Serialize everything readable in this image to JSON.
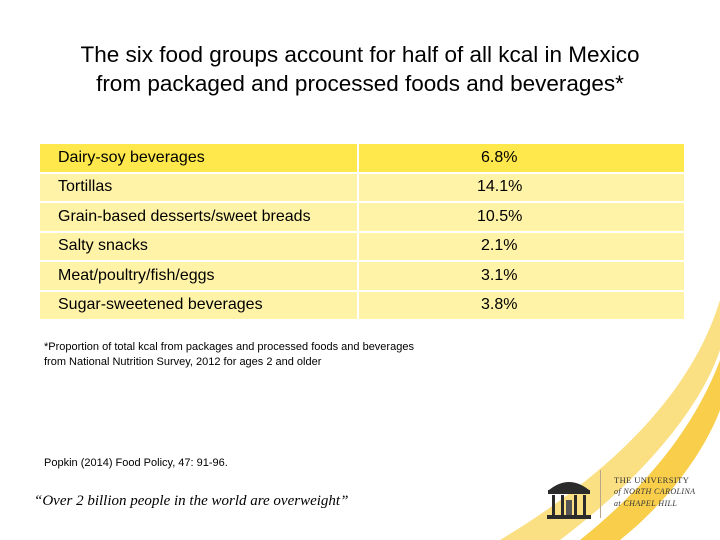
{
  "title": {
    "line1": "The six food groups account for half of all kcal in Mexico",
    "line2": "from packaged and processed foods and beverages*"
  },
  "rows": [
    {
      "name": "Dairy-soy beverages",
      "value": "6.8%"
    },
    {
      "name": "Tortillas",
      "value": "14.1%"
    },
    {
      "name": "Grain-based desserts/sweet breads",
      "value": "10.5%"
    },
    {
      "name": "Salty snacks",
      "value": "2.1%"
    },
    {
      "name": "Meat/poultry/fish/eggs",
      "value": "3.1%"
    },
    {
      "name": "Sugar-sweetened beverages",
      "value": "3.8%"
    }
  ],
  "footnote": {
    "line1": "*Proportion of total kcal from packages and processed foods and beverages",
    "line2": "from National Nutrition Survey, 2012 for ages 2 and older"
  },
  "reference": "Popkin (2014) Food Policy, 47: 91-96.",
  "quote": "“Over 2 billion people in the world are overweight”",
  "logo": {
    "line1": "THE UNIVERSITY",
    "line2": "of NORTH CAROLINA",
    "line3": "at CHAPEL HILL"
  },
  "colors": {
    "row_dark": "#fee84c",
    "row_light": "#fff3a8",
    "swoosh": "#f7c52b"
  }
}
